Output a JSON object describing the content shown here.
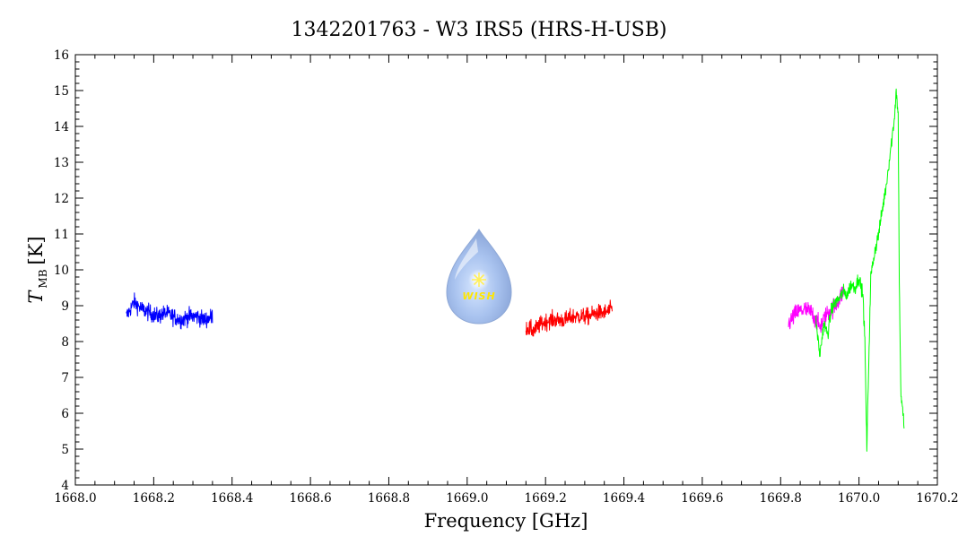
{
  "chart_data": {
    "type": "line",
    "title": "1342201763 - W3 IRS5 (HRS-H-USB)",
    "xlabel": "Frequency [GHz]",
    "ylabel": {
      "symbol": "T",
      "subscript": "MB",
      "unit": "[K]"
    },
    "xlim": [
      1668.0,
      1670.2
    ],
    "ylim": [
      4,
      16
    ],
    "x_ticks": [
      "1668.0",
      "1668.2",
      "1668.4",
      "1668.6",
      "1668.8",
      "1669.0",
      "1669.2",
      "1669.4",
      "1669.6",
      "1669.8",
      "1670.0",
      "1670.2"
    ],
    "y_ticks": [
      "4",
      "5",
      "6",
      "7",
      "8",
      "9",
      "10",
      "11",
      "12",
      "13",
      "14",
      "15",
      "16"
    ],
    "grid": false,
    "logo_text": "WISH",
    "series": [
      {
        "color": "#0000ff",
        "x_range": [
          1668.13,
          1668.35
        ],
        "points": [
          [
            1668.13,
            8.7
          ],
          [
            1668.15,
            9.1
          ],
          [
            1668.17,
            8.9
          ],
          [
            1668.19,
            8.8
          ],
          [
            1668.21,
            8.7
          ],
          [
            1668.23,
            8.8
          ],
          [
            1668.25,
            8.7
          ],
          [
            1668.27,
            8.6
          ],
          [
            1668.29,
            8.7
          ],
          [
            1668.31,
            8.7
          ],
          [
            1668.33,
            8.6
          ],
          [
            1668.35,
            8.7
          ]
        ],
        "noise": 0.22
      },
      {
        "color": "#ff0000",
        "x_range": [
          1669.15,
          1669.37
        ],
        "points": [
          [
            1669.15,
            8.4
          ],
          [
            1669.17,
            8.3
          ],
          [
            1669.19,
            8.5
          ],
          [
            1669.21,
            8.6
          ],
          [
            1669.23,
            8.6
          ],
          [
            1669.25,
            8.6
          ],
          [
            1669.27,
            8.7
          ],
          [
            1669.29,
            8.7
          ],
          [
            1669.31,
            8.7
          ],
          [
            1669.33,
            8.8
          ],
          [
            1669.35,
            8.8
          ],
          [
            1669.37,
            8.9
          ]
        ],
        "noise": 0.22
      },
      {
        "color": "#ff00ff",
        "x_range": [
          1669.82,
          1669.96
        ],
        "points": [
          [
            1669.82,
            8.5
          ],
          [
            1669.84,
            8.8
          ],
          [
            1669.86,
            8.9
          ],
          [
            1669.88,
            8.8
          ],
          [
            1669.9,
            8.4
          ],
          [
            1669.92,
            8.8
          ],
          [
            1669.94,
            9.0
          ],
          [
            1669.96,
            9.4
          ]
        ],
        "noise": 0.25
      },
      {
        "color": "#00ff00",
        "x_range": [
          1669.89,
          1670.115
        ],
        "points": [
          [
            1669.89,
            8.6
          ],
          [
            1669.9,
            7.6
          ],
          [
            1669.91,
            8.5
          ],
          [
            1669.92,
            8.2
          ],
          [
            1669.93,
            8.9
          ],
          [
            1669.94,
            9.1
          ],
          [
            1669.95,
            9.2
          ],
          [
            1669.96,
            9.4
          ],
          [
            1669.97,
            9.3
          ],
          [
            1669.98,
            9.6
          ],
          [
            1669.99,
            9.5
          ],
          [
            1670.0,
            9.8
          ],
          [
            1670.01,
            9.3
          ],
          [
            1670.015,
            8.0
          ],
          [
            1670.02,
            5.0
          ],
          [
            1670.025,
            7.5
          ],
          [
            1670.03,
            9.8
          ],
          [
            1670.04,
            10.5
          ],
          [
            1670.05,
            11.0
          ],
          [
            1670.06,
            11.7
          ],
          [
            1670.07,
            12.4
          ],
          [
            1670.08,
            13.3
          ],
          [
            1670.09,
            14.2
          ],
          [
            1670.095,
            15.0
          ],
          [
            1670.1,
            14.3
          ],
          [
            1670.103,
            9.5
          ],
          [
            1670.107,
            6.5
          ],
          [
            1670.115,
            5.7
          ]
        ],
        "noise": 0.18
      }
    ]
  }
}
